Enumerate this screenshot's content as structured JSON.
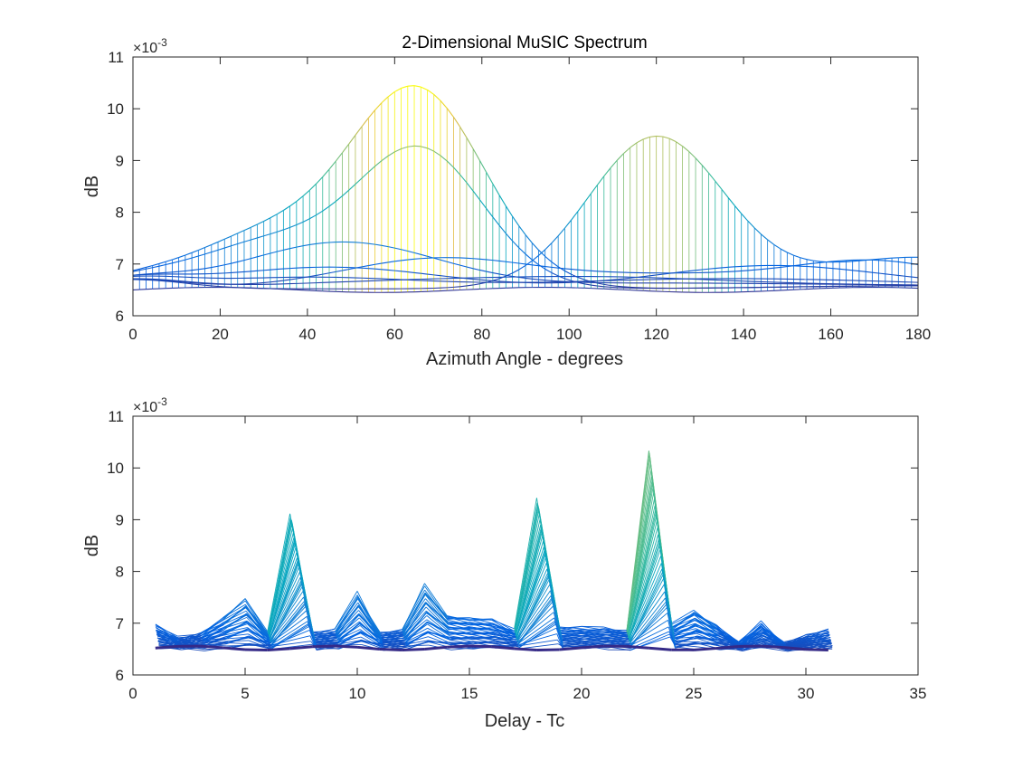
{
  "chart_data": [
    {
      "type": "line",
      "title": "2-Dimensional MuSIC Spectrum",
      "xlabel": "Azimuth Angle - degrees",
      "ylabel": "dB",
      "y_multiplier_label": "×10",
      "y_multiplier_exponent": "-3",
      "xlim": [
        0,
        180
      ],
      "ylim": [
        6,
        11
      ],
      "xticks": [
        0,
        20,
        40,
        60,
        80,
        100,
        120,
        140,
        160,
        180
      ],
      "yticks": [
        6,
        7,
        8,
        9,
        10,
        11
      ],
      "grid": false,
      "curve_samples": [
        {
          "x": 0,
          "y_max": 6.75,
          "y_min": 6.45
        },
        {
          "x": 20,
          "y_max": 6.95,
          "y_min": 6.5
        },
        {
          "x": 40,
          "y_max": 7.65,
          "y_min": 6.55
        },
        {
          "x": 65,
          "y_max": 10.35,
          "y_min": 6.5
        },
        {
          "x": 92,
          "y_max": 7.35,
          "y_min": 6.5
        },
        {
          "x": 120,
          "y_max": 9.45,
          "y_min": 6.5
        },
        {
          "x": 150,
          "y_max": 7.05,
          "y_min": 6.5
        },
        {
          "x": 180,
          "y_max": 7.25,
          "y_min": 6.5
        }
      ]
    },
    {
      "type": "line",
      "title": "",
      "xlabel": "Delay - Tc",
      "ylabel": "dB",
      "y_multiplier_label": "×10",
      "y_multiplier_exponent": "-3",
      "xlim": [
        0,
        35
      ],
      "ylim": [
        6,
        11
      ],
      "xticks": [
        0,
        5,
        10,
        15,
        20,
        25,
        30,
        35
      ],
      "yticks": [
        6,
        7,
        8,
        9,
        10,
        11
      ],
      "grid": false,
      "x": [
        1,
        2,
        3,
        4,
        5,
        6,
        7,
        8,
        9,
        10,
        11,
        12,
        13,
        14,
        15,
        16,
        17,
        18,
        19,
        20,
        21,
        22,
        23,
        24,
        25,
        26,
        27,
        28,
        29,
        30,
        31
      ],
      "peak_envelope": [
        6.95,
        6.7,
        6.8,
        7.1,
        7.45,
        6.8,
        9.15,
        6.8,
        6.85,
        7.6,
        6.8,
        6.85,
        7.72,
        7.15,
        7.1,
        7.05,
        6.85,
        9.45,
        6.9,
        6.9,
        6.9,
        6.85,
        10.35,
        6.95,
        7.25,
        6.95,
        6.6,
        7.0,
        6.6,
        6.75,
        6.85
      ],
      "base_level": 6.5
    }
  ]
}
